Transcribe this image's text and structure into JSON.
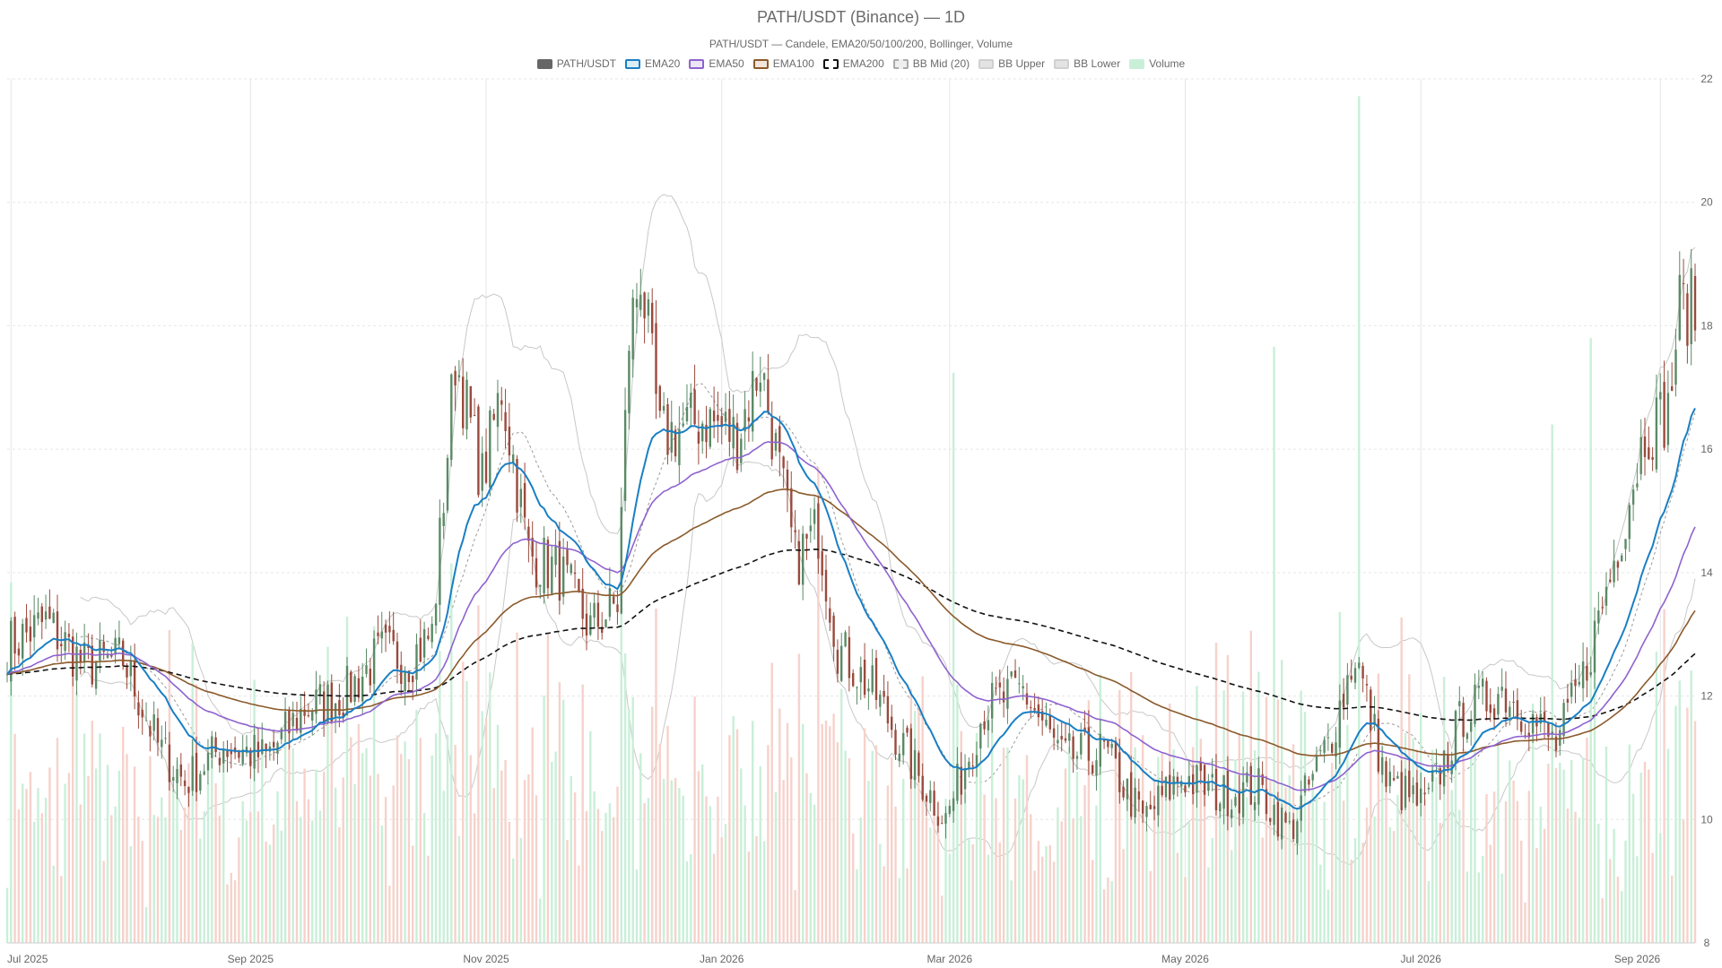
{
  "chart_data": {
    "type": "candlestick",
    "title": "PATH/USDT (Binance) — 1D",
    "subtitle": "PATH/USDT — Candele, EMA20/50/100/200, Bollinger, Volume",
    "x_ticks": [
      "Jul 2025",
      "Sep 2025",
      "Nov 2025",
      "Jan 2026",
      "Mar 2026",
      "May 2026",
      "Jul 2026",
      "Sep 2026"
    ],
    "y_ticks": [
      8,
      10,
      12,
      14,
      16,
      18,
      20,
      22
    ],
    "ylim": [
      8,
      22
    ],
    "legend": [
      {
        "name": "PATH/USDT",
        "color": "#666666",
        "border": "#666666"
      },
      {
        "name": "EMA20",
        "color": "#dbeef7",
        "border": "#1a7fc4"
      },
      {
        "name": "EMA50",
        "color": "#ece6f7",
        "border": "#8e63cf"
      },
      {
        "name": "EMA100",
        "color": "#f3e5dc",
        "border": "#8b5a2b"
      },
      {
        "name": "EMA200",
        "color": "#ffffff",
        "border": "#111111",
        "dashed": true
      },
      {
        "name": "BB Mid (20)",
        "color": "#eeeeee",
        "border": "#aaaaaa",
        "dashed": true
      },
      {
        "name": "BB Upper",
        "color": "#e3e3e3",
        "border": "#d0d0d0"
      },
      {
        "name": "BB Lower",
        "color": "#e3e3e3",
        "border": "#d0d0d0"
      },
      {
        "name": "Volume",
        "color": "#c9efd8",
        "border": "#c9efd8"
      }
    ],
    "colors": {
      "up": "#5a8a66",
      "down": "#9a4a3c",
      "volume_up": "#c9efd8",
      "volume_down": "#f6d2cb",
      "ema20": "#1a7fc4",
      "ema50": "#8e63cf",
      "ema100": "#8b5a2b",
      "ema200": "#111111",
      "bb_mid": "#9a9a9a",
      "bb_band": "#c8c8c8"
    },
    "price_path": [
      [
        "2025-06-30",
        12.8
      ],
      [
        "2025-07-10",
        13.2
      ],
      [
        "2025-07-20",
        12.5
      ],
      [
        "2025-07-30",
        12.6
      ],
      [
        "2025-08-08",
        11.2
      ],
      [
        "2025-08-15",
        10.6
      ],
      [
        "2025-08-25",
        11.2
      ],
      [
        "2025-09-05",
        11.0
      ],
      [
        "2025-09-15",
        11.8
      ],
      [
        "2025-09-25",
        12.0
      ],
      [
        "2025-10-05",
        12.7
      ],
      [
        "2025-10-12",
        12.6
      ],
      [
        "2025-10-18",
        13.0
      ],
      [
        "2025-10-24",
        17.5
      ],
      [
        "2025-10-31",
        15.5
      ],
      [
        "2025-11-05",
        17.0
      ],
      [
        "2025-11-12",
        14.3
      ],
      [
        "2025-11-20",
        14.0
      ],
      [
        "2025-11-28",
        13.1
      ],
      [
        "2025-12-05",
        13.5
      ],
      [
        "2025-12-08",
        17.8
      ],
      [
        "2025-12-11",
        18.9
      ],
      [
        "2025-12-16",
        16.2
      ],
      [
        "2025-12-28",
        16.5
      ],
      [
        "2026-01-05",
        16.2
      ],
      [
        "2026-01-11",
        17.4
      ],
      [
        "2026-01-16",
        15.6
      ],
      [
        "2026-01-20",
        14.2
      ],
      [
        "2026-01-26",
        14.7
      ],
      [
        "2026-01-31",
        12.8
      ],
      [
        "2026-02-10",
        12.0
      ],
      [
        "2026-02-20",
        10.8
      ],
      [
        "2026-02-28",
        10.0
      ],
      [
        "2026-03-10",
        11.8
      ],
      [
        "2026-03-20",
        12.1
      ],
      [
        "2026-03-30",
        11.0
      ],
      [
        "2026-04-10",
        11.1
      ],
      [
        "2026-04-20",
        10.0
      ],
      [
        "2026-04-30",
        10.7
      ],
      [
        "2026-05-10",
        10.4
      ],
      [
        "2026-05-20",
        10.5
      ],
      [
        "2026-05-28",
        9.8
      ],
      [
        "2026-06-08",
        11.4
      ],
      [
        "2026-06-14",
        12.7
      ],
      [
        "2026-06-22",
        10.6
      ],
      [
        "2026-07-02",
        10.2
      ],
      [
        "2026-07-12",
        11.7
      ],
      [
        "2026-07-22",
        12.1
      ],
      [
        "2026-07-30",
        11.6
      ],
      [
        "2026-08-05",
        11.2
      ],
      [
        "2026-08-12",
        12.3
      ],
      [
        "2026-08-20",
        14.2
      ],
      [
        "2026-08-28",
        16.3
      ],
      [
        "2026-09-03",
        16.6
      ],
      [
        "2026-09-06",
        18.3
      ],
      [
        "2026-09-10",
        18.3
      ]
    ],
    "volume_ylim": [
      0,
      1
    ]
  }
}
